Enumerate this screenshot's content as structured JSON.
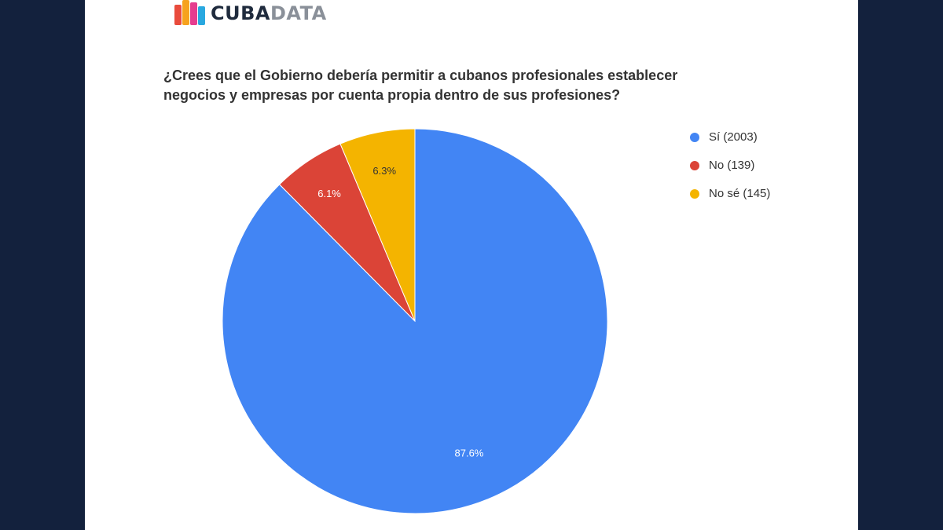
{
  "logo": {
    "text_a": "CUBA",
    "text_b": "DATA",
    "bar_colors": [
      "#e94b3c",
      "#f6a21e",
      "#e63d8f",
      "#29a8e0"
    ]
  },
  "title_lines": [
    "¿Crees que el Gobierno debería permitir a cubanos profesionales establecer",
    "negocios y empresas por cuenta propia dentro de sus profesiones?"
  ],
  "chart_data": {
    "type": "pie",
    "title": "¿Crees que el Gobierno debería permitir a cubanos profesionales establecer negocios y empresas por cuenta propia dentro de sus profesiones?",
    "legend_position": "right",
    "slices": [
      {
        "label": "Sí (2003)",
        "value": 2003,
        "percent_label": "87.6%",
        "color": "#4285f4"
      },
      {
        "label": "No (139)",
        "value": 139,
        "percent_label": "6.1%",
        "color": "#db4437"
      },
      {
        "label": "No sé (145)",
        "value": 145,
        "percent_label": "6.3%",
        "color": "#f4b400"
      }
    ]
  }
}
